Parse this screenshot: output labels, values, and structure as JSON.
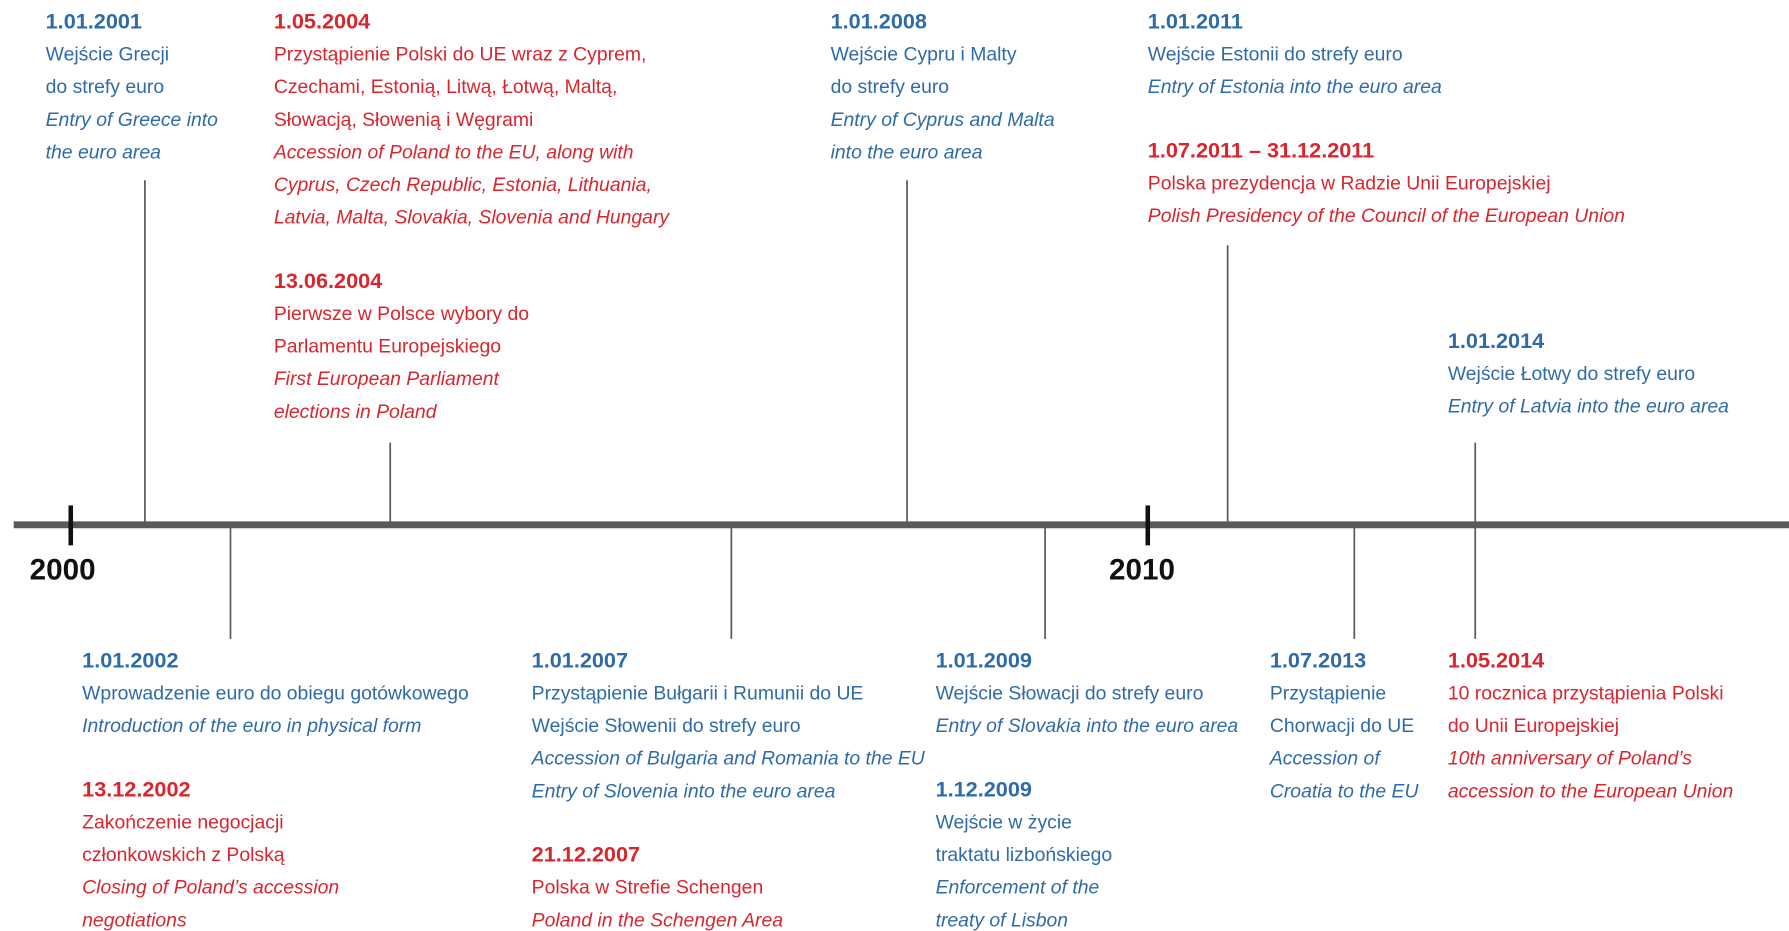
{
  "axis_labels": [
    "2000",
    "2010"
  ],
  "blocks": [
    {
      "events": [
        {
          "date": "1.01.2001",
          "color": "#2e6ba8",
          "pl": [
            "Wejście Grecji",
            "do strefy euro"
          ],
          "en": [
            "Entry of Greece into",
            "the euro area"
          ]
        }
      ]
    },
    {
      "events": [
        {
          "date": "1.05.2004",
          "color": "#d9262e",
          "pl": [
            "Przystąpienie Polski do UE wraz z Cyprem,",
            "Czechami, Estonią, Litwą, Łotwą, Maltą,",
            "Słowacją, Słowenią i Węgrami"
          ],
          "en": [
            "Accession of Poland to the EU, along with",
            "Cyprus, Czech Republic, Estonia, Lithuania,",
            "Latvia, Malta, Slovakia, Slovenia and Hungary"
          ]
        },
        {
          "date": "13.06.2004",
          "color": "#d9262e",
          "pl": [
            "Pierwsze w Polsce wybory do",
            "Parlamentu Europejskiego"
          ],
          "en": [
            "First European Parliament",
            "elections in Poland"
          ]
        }
      ]
    },
    {
      "events": [
        {
          "date": "1.01.2008",
          "color": "#2e6ba8",
          "pl": [
            "Wejście Cypru i Malty",
            "do strefy euro"
          ],
          "en": [
            "Entry of Cyprus and Malta",
            "into the euro area"
          ]
        }
      ]
    },
    {
      "events": [
        {
          "date": "1.01.2011",
          "color": "#2e6ba8",
          "pl": [
            "Wejście Estonii do strefy euro"
          ],
          "en": [
            "Entry of  Estonia into the euro area"
          ]
        },
        {
          "date": "1.07.2011 – 31.12.2011",
          "color": "#d9262e",
          "pl": [
            "Polska prezydencja w Radzie Unii Europejskiej"
          ],
          "en": [
            "Polish Presidency of the Council of the European Union"
          ]
        }
      ]
    },
    {
      "events": [
        {
          "date": "1.01.2014",
          "color": "#2e6ba8",
          "pl": [
            "Wejście Łotwy do strefy euro"
          ],
          "en": [
            "Entry of Latvia into the euro area"
          ]
        }
      ]
    },
    {
      "events": [
        {
          "date": "1.01.2002",
          "color": "#2e6ba8",
          "pl": [
            "Wprowadzenie euro do obiegu gotówkowego"
          ],
          "en": [
            "Introduction of the euro in physical form"
          ]
        },
        {
          "date": "13.12.2002",
          "color": "#d9262e",
          "pl": [
            "Zakończenie negocjacji",
            "członkowskich z Polską"
          ],
          "en": [
            "Closing of Poland’s accession",
            "negotiations"
          ]
        }
      ]
    },
    {
      "events": [
        {
          "date": "1.01.2007",
          "color": "#2e6ba8",
          "pl": [
            "Przystąpienie Bułgarii i Rumunii do UE",
            "Wejście Słowenii do strefy euro"
          ],
          "en": [
            "Accession of Bulgaria and Romania to the EU",
            "Entry of Slovenia into the euro area"
          ]
        },
        {
          "date": "21.12.2007",
          "color": "#d9262e",
          "pl": [
            "Polska w Strefie Schengen"
          ],
          "en": [
            "Poland in the Schengen Area"
          ]
        }
      ]
    },
    {
      "events": [
        {
          "date": "1.01.2009",
          "color": "#2e6ba8",
          "pl": [
            "Wejście Słowacji do strefy euro"
          ],
          "en": [
            "Entry of Slovakia into the euro area"
          ]
        },
        {
          "date": "1.12.2009",
          "color": "#2e6ba8",
          "pl": [
            "Wejście w życie",
            "traktatu lizbońskiego"
          ],
          "en": [
            "Enforcement of the",
            "treaty of Lisbon"
          ]
        }
      ]
    },
    {
      "events": [
        {
          "date": "1.07.2013",
          "color": "#2e6ba8",
          "pl": [
            "Przystąpienie",
            "Chorwacji do UE"
          ],
          "en": [
            "Accession of",
            "Croatia to the EU"
          ]
        }
      ]
    },
    {
      "events": [
        {
          "date": "1.05.2014",
          "color": "#d9262e",
          "pl": [
            "10 rocznica przystąpienia Polski",
            "do Unii Europejskiej"
          ],
          "en": [
            "10th anniversary of Poland’s",
            "accession to the European Union"
          ]
        }
      ]
    }
  ]
}
